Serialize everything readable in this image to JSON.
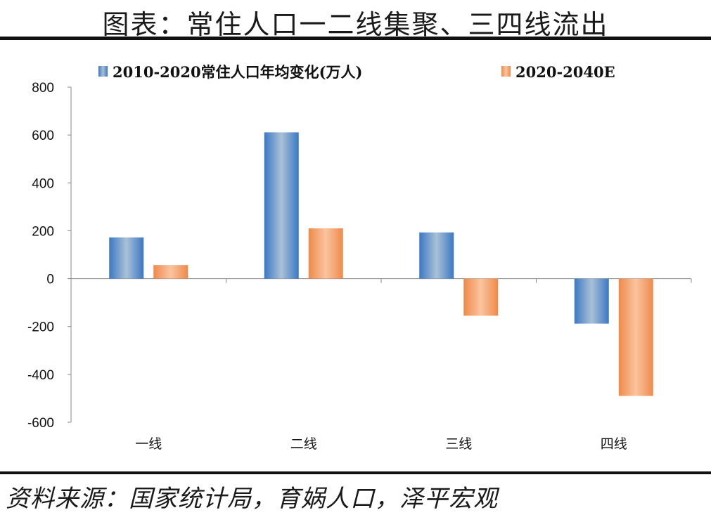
{
  "title": "图表：常住人口一二线集聚、三四线流出",
  "source": "资料来源：国家统计局，育娲人口，泽平宏观",
  "colors": {
    "series1": "#3b78c4",
    "series1_light": "#a9c1d6",
    "series2": "#ee8a4a",
    "series2_light": "#fbc49f"
  },
  "chart_data": {
    "type": "bar",
    "categories": [
      "一线",
      "二线",
      "三线",
      "四线"
    ],
    "series": [
      {
        "name": "2010-2020常住人口年均变化(万人)",
        "values": [
          172,
          611,
          193,
          -188
        ]
      },
      {
        "name": "2020-2040E",
        "values": [
          57,
          210,
          -155,
          -490
        ]
      }
    ],
    "ylim": [
      -600,
      800
    ],
    "yticks": [
      800,
      600,
      400,
      200,
      0,
      -200,
      -400,
      -600
    ],
    "ytick_labels": [
      "800",
      "600",
      "400",
      "200",
      "0",
      "-200",
      "-400",
      "-600"
    ],
    "legend_position": "top",
    "grid": false
  }
}
